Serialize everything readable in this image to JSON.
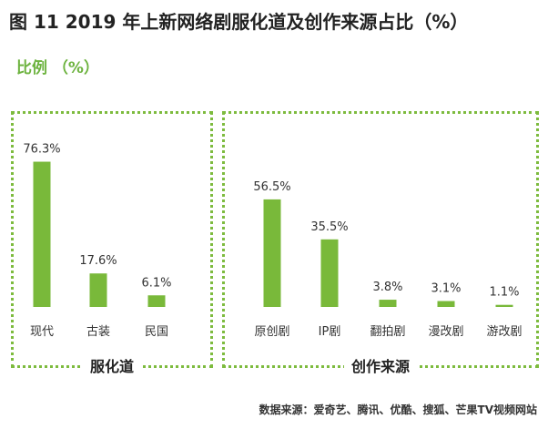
{
  "title": "图 11  2019 年上新网络剧服化道及创作来源占比（%）",
  "unit_label": "比例 （%）",
  "source": "数据来源：爱奇艺、腾讯、优酷、搜狐、芒果TV视频网站",
  "colors": {
    "bar": "#79b93a",
    "border": "#7dbb3e",
    "unit": "#6db33f"
  },
  "chart_data": [
    {
      "type": "bar",
      "title": "服化道",
      "categories": [
        "现代",
        "古装",
        "民国"
      ],
      "values": [
        76.3,
        17.6,
        6.1
      ],
      "value_labels": [
        "76.3%",
        "17.6%",
        "6.1%"
      ],
      "ylim": [
        0,
        80
      ]
    },
    {
      "type": "bar",
      "title": "创作来源",
      "categories": [
        "原创剧",
        "IP剧",
        "翻拍剧",
        "漫改剧",
        "游改剧"
      ],
      "values": [
        56.5,
        35.5,
        3.8,
        3.1,
        1.1
      ],
      "value_labels": [
        "56.5%",
        "35.5%",
        "3.8%",
        "3.1%",
        "1.1%"
      ],
      "ylim": [
        0,
        80
      ]
    }
  ]
}
